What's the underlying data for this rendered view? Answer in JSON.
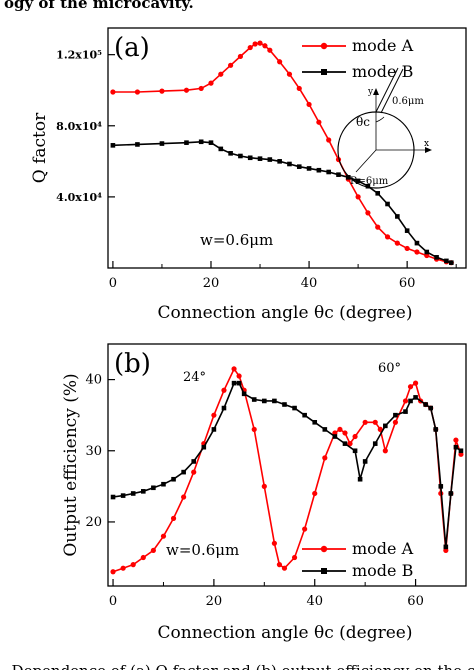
{
  "header_fragment": "ogy of the microcavity.",
  "caption_fragment": ". Dependence of (a) Q factor and (b) output efficiency on the conne",
  "chart_data": [
    {
      "type": "line",
      "panel_label": "(a)",
      "title": "",
      "xlabel": "Connection angle θc (degree)",
      "ylabel": "Q factor",
      "xlim": [
        -1,
        72
      ],
      "ylim": [
        0,
        135000
      ],
      "xticks": [
        0,
        20,
        40,
        60
      ],
      "yticks": [
        40000,
        80000,
        120000
      ],
      "ytick_labels": [
        "4.0x10⁴",
        "8.0x10⁴",
        "1.2x10⁵"
      ],
      "legend_position": "top-right",
      "annotations": [
        "w=0.6μm"
      ],
      "inset": {
        "labels": [
          "θc",
          "0.6μm",
          "R=6μm",
          "y",
          "x"
        ]
      },
      "series": [
        {
          "name": "mode A",
          "color": "#ff0000",
          "marker": "circle",
          "points": [
            [
              0,
              99000
            ],
            [
              5,
              99000
            ],
            [
              10,
              99500
            ],
            [
              15,
              100000
            ],
            [
              18,
              101000
            ],
            [
              20,
              104000
            ],
            [
              22,
              109000
            ],
            [
              24,
              114000
            ],
            [
              26,
              119000
            ],
            [
              28,
              124000
            ],
            [
              29,
              126000
            ],
            [
              30,
              126500
            ],
            [
              31,
              125000
            ],
            [
              32,
              122500
            ],
            [
              34,
              116000
            ],
            [
              36,
              109000
            ],
            [
              38,
              101000
            ],
            [
              40,
              92000
            ],
            [
              42,
              82000
            ],
            [
              44,
              72000
            ],
            [
              46,
              61000
            ],
            [
              48,
              50000
            ],
            [
              50,
              40000
            ],
            [
              52,
              31000
            ],
            [
              54,
              23000
            ],
            [
              56,
              17500
            ],
            [
              58,
              14000
            ],
            [
              60,
              11000
            ],
            [
              62,
              9000
            ],
            [
              64,
              7000
            ],
            [
              66,
              5000
            ],
            [
              68,
              3500
            ],
            [
              69,
              3000
            ]
          ]
        },
        {
          "name": "mode B",
          "color": "#000000",
          "marker": "square",
          "points": [
            [
              0,
              69000
            ],
            [
              5,
              69500
            ],
            [
              10,
              70000
            ],
            [
              15,
              70500
            ],
            [
              18,
              71000
            ],
            [
              20,
              70500
            ],
            [
              22,
              67000
            ],
            [
              24,
              64500
            ],
            [
              26,
              63000
            ],
            [
              28,
              62000
            ],
            [
              30,
              61500
            ],
            [
              32,
              61000
            ],
            [
              34,
              60000
            ],
            [
              36,
              58500
            ],
            [
              38,
              57000
            ],
            [
              40,
              56000
            ],
            [
              42,
              55000
            ],
            [
              44,
              54000
            ],
            [
              46,
              52500
            ],
            [
              48,
              51000
            ],
            [
              50,
              49000
            ],
            [
              52,
              46000
            ],
            [
              54,
              42000
            ],
            [
              56,
              36000
            ],
            [
              58,
              29000
            ],
            [
              60,
              21000
            ],
            [
              62,
              14000
            ],
            [
              64,
              9000
            ],
            [
              66,
              6000
            ],
            [
              68,
              4000
            ],
            [
              69,
              3000
            ]
          ]
        }
      ]
    },
    {
      "type": "line",
      "panel_label": "(b)",
      "title": "",
      "xlabel": "Connection angle θc (degree)",
      "ylabel": "Output efficiency (%)",
      "xlim": [
        -1,
        70
      ],
      "ylim": [
        11,
        45
      ],
      "xticks": [
        0,
        20,
        40,
        60
      ],
      "yticks": [
        20,
        30,
        40
      ],
      "legend_position": "bottom-right",
      "annotations": [
        "w=0.6μm",
        "24°",
        "60°"
      ],
      "series": [
        {
          "name": "mode A",
          "color": "#ff0000",
          "marker": "circle",
          "points": [
            [
              0,
              13
            ],
            [
              2,
              13.5
            ],
            [
              4,
              14
            ],
            [
              6,
              15
            ],
            [
              8,
              16
            ],
            [
              10,
              18
            ],
            [
              12,
              20.5
            ],
            [
              14,
              23.5
            ],
            [
              16,
              27
            ],
            [
              18,
              31
            ],
            [
              20,
              35
            ],
            [
              22,
              38.5
            ],
            [
              24,
              41.5
            ],
            [
              25,
              40.5
            ],
            [
              26,
              38.5
            ],
            [
              28,
              33
            ],
            [
              30,
              25
            ],
            [
              32,
              17
            ],
            [
              33,
              14
            ],
            [
              34,
              13.5
            ],
            [
              36,
              15
            ],
            [
              38,
              19
            ],
            [
              40,
              24
            ],
            [
              42,
              29
            ],
            [
              44,
              32.5
            ],
            [
              45,
              33
            ],
            [
              46,
              32.5
            ],
            [
              47,
              31
            ],
            [
              48,
              32
            ],
            [
              50,
              34
            ],
            [
              52,
              34
            ],
            [
              53,
              33
            ],
            [
              54,
              30
            ],
            [
              56,
              34
            ],
            [
              58,
              37
            ],
            [
              59,
              39
            ],
            [
              60,
              39.5
            ],
            [
              61,
              37
            ],
            [
              62,
              36.5
            ],
            [
              63,
              36
            ],
            [
              64,
              33
            ],
            [
              65,
              24
            ],
            [
              66,
              16
            ],
            [
              67,
              24
            ],
            [
              68,
              31.5
            ],
            [
              69,
              29.5
            ]
          ]
        },
        {
          "name": "mode B",
          "color": "#000000",
          "marker": "square",
          "points": [
            [
              0,
              23.5
            ],
            [
              2,
              23.7
            ],
            [
              4,
              24
            ],
            [
              6,
              24.3
            ],
            [
              8,
              24.8
            ],
            [
              10,
              25.3
            ],
            [
              12,
              26
            ],
            [
              14,
              27
            ],
            [
              16,
              28.5
            ],
            [
              18,
              30.5
            ],
            [
              20,
              33
            ],
            [
              22,
              36
            ],
            [
              24,
              39.5
            ],
            [
              25,
              39.5
            ],
            [
              26,
              38
            ],
            [
              28,
              37.2
            ],
            [
              30,
              37
            ],
            [
              32,
              37
            ],
            [
              34,
              36.5
            ],
            [
              36,
              36
            ],
            [
              38,
              35
            ],
            [
              40,
              34
            ],
            [
              42,
              33
            ],
            [
              44,
              32
            ],
            [
              46,
              31
            ],
            [
              48,
              30
            ],
            [
              49,
              26
            ],
            [
              50,
              28.5
            ],
            [
              52,
              31
            ],
            [
              54,
              33.5
            ],
            [
              56,
              35
            ],
            [
              58,
              35.5
            ],
            [
              59,
              37
            ],
            [
              60,
              37.5
            ],
            [
              62,
              36.5
            ],
            [
              63,
              36
            ],
            [
              64,
              33
            ],
            [
              65,
              25
            ],
            [
              66,
              16.5
            ],
            [
              67,
              24
            ],
            [
              68,
              30.5
            ],
            [
              69,
              30
            ]
          ]
        }
      ]
    }
  ]
}
